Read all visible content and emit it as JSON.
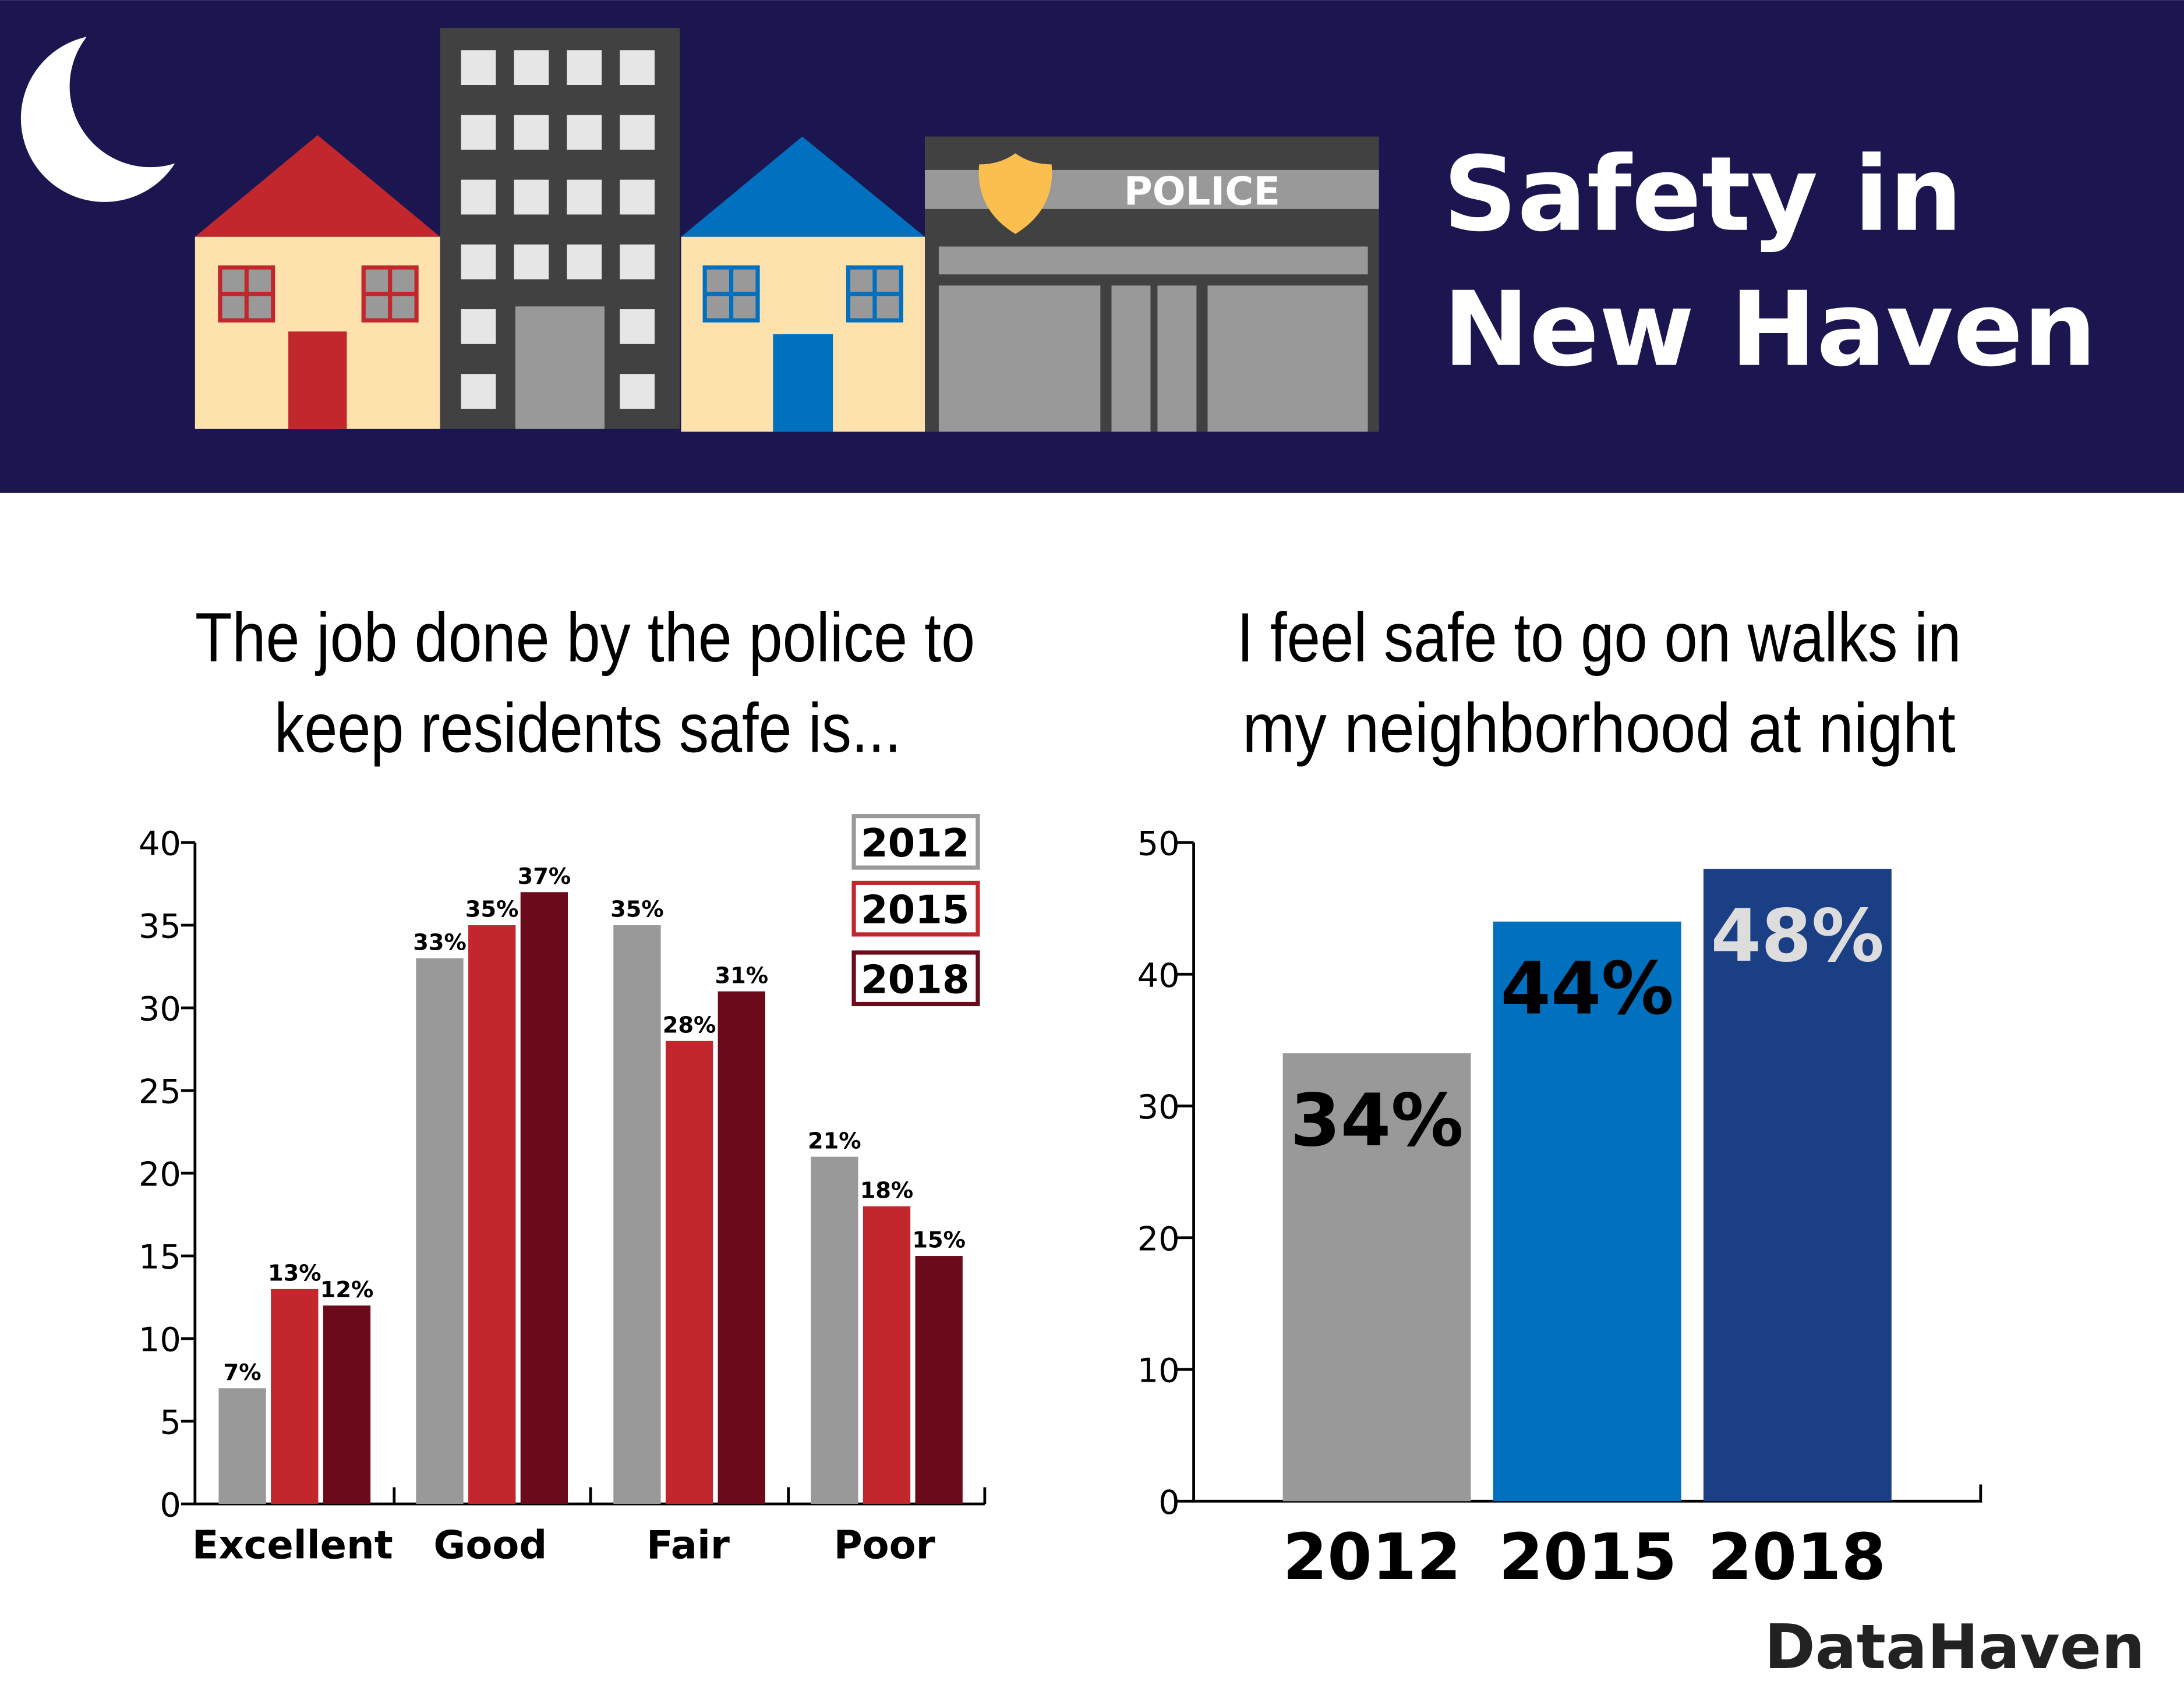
{
  "header": {
    "title_line1": "Safety in",
    "title_line2": "New Haven",
    "police_sign": "POLICE",
    "background_color": "#1c1650"
  },
  "brand": "DataHaven",
  "chart_data": [
    {
      "type": "bar",
      "title_line1": "The job done by the police to",
      "title_line2": "keep residents safe is...",
      "categories": [
        "Excellent",
        "Good",
        "Fair",
        "Poor"
      ],
      "series": [
        {
          "name": "2012",
          "color": "#999999",
          "values": [
            7,
            33,
            35,
            21
          ],
          "labels": [
            "7%",
            "33%",
            "35%",
            "21%"
          ]
        },
        {
          "name": "2015",
          "color": "#c1272d",
          "values": [
            13,
            35,
            28,
            18
          ],
          "labels": [
            "13%",
            "35%",
            "28%",
            "18%"
          ]
        },
        {
          "name": "2018",
          "color": "#6b0a1a",
          "values": [
            12,
            37,
            31,
            15
          ],
          "labels": [
            "12%",
            "37%",
            "31%",
            "15%"
          ]
        }
      ],
      "yticks": [
        "0",
        "5",
        "10",
        "15",
        "20",
        "25",
        "30",
        "35",
        "40"
      ],
      "ylim": [
        0,
        40
      ],
      "legend": "top-right",
      "grid": false
    },
    {
      "type": "bar",
      "title_line1": "I feel safe to go on walks in",
      "title_line2": "my neighborhood at night",
      "categories": [
        "2012",
        "2015",
        "2018"
      ],
      "values": [
        34,
        44,
        48
      ],
      "labels": [
        "34%",
        "44%",
        "48%"
      ],
      "colors": [
        "#999999",
        "#0070bf",
        "#1b3f85"
      ],
      "label_colors": [
        "#000000",
        "#000000",
        "#dddddd"
      ],
      "yticks": [
        "0",
        "10",
        "20",
        "30",
        "40",
        "50"
      ],
      "ylim": [
        0,
        50
      ],
      "grid": false
    }
  ]
}
